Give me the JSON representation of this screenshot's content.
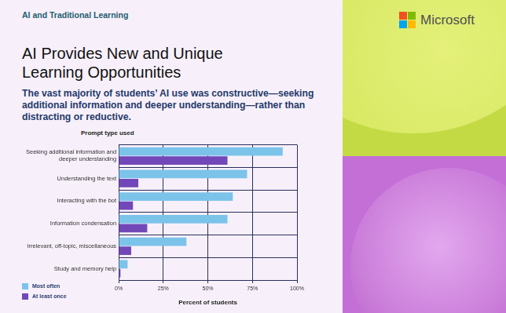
{
  "chart_data": {
    "type": "bar",
    "orientation": "horizontal",
    "header": "AI and Traditional Learning",
    "logo": "Microsoft",
    "title": "AI Provides New and Unique Learning Opportunities",
    "subtitle": "The vast majority of students’ AI use was constructive—seeking additional information and deeper understanding—rather than distracting or reductive.",
    "y_label": "Prompt type used",
    "x_label": "Percent of students",
    "categories": [
      "Seeking additional information and deeper understanding",
      "Understanding the text",
      "Interacting with the bot",
      "Information condensation",
      "Irrelevant, off-topic, miscellaneous",
      "Study and memory help"
    ],
    "series": [
      {
        "name": "Most often",
        "color": "#7cc3ea",
        "values": [
          92,
          72,
          64,
          61,
          38,
          5
        ]
      },
      {
        "name": "At least once",
        "color": "#7248b8",
        "values": [
          61,
          11,
          8,
          16,
          7,
          1
        ]
      }
    ],
    "xlim": [
      0,
      100
    ],
    "xticks": [
      {
        "value": 0,
        "label": "0%"
      },
      {
        "value": 25,
        "label": "25%"
      },
      {
        "value": 50,
        "label": "50%"
      },
      {
        "value": 75,
        "label": "75%"
      },
      {
        "value": 100,
        "label": "100%"
      }
    ],
    "grid": true,
    "legend": "bottom-left"
  }
}
